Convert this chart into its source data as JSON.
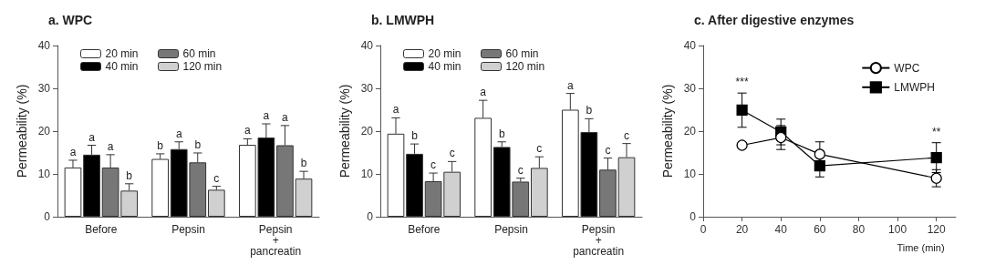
{
  "chart_data": [
    {
      "type": "bar",
      "title": "a. WPC",
      "ylabel": "Permeability (%)",
      "categories": [
        "Before",
        "Pepsin",
        "Pepsin + pancreatin"
      ],
      "ylim": [
        0,
        40
      ],
      "yticks": [
        0,
        10,
        20,
        30,
        40
      ],
      "legend": "top",
      "series": [
        {
          "name": "20 min",
          "color": "#ffffff",
          "values": [
            11.5,
            13.5,
            16.8
          ],
          "errors": [
            1.7,
            1.2,
            1.4
          ],
          "value_labels": [
            "a",
            "b",
            "a"
          ]
        },
        {
          "name": "40 min",
          "color": "#000000",
          "values": [
            14.5,
            15.8,
            18.5
          ],
          "errors": [
            2.2,
            1.7,
            3.2
          ],
          "value_labels": [
            "a",
            "a",
            "a"
          ]
        },
        {
          "name": "60 min",
          "color": "#777777",
          "values": [
            11.5,
            12.7,
            16.7
          ],
          "errors": [
            3.0,
            2.2,
            4.6
          ],
          "value_labels": [
            "a",
            "b",
            "a"
          ]
        },
        {
          "name": "120 min",
          "color": "#d0d0d0",
          "values": [
            6.1,
            6.3,
            8.9
          ],
          "errors": [
            1.6,
            0.8,
            1.7
          ],
          "value_labels": [
            "b",
            "c",
            "b"
          ]
        }
      ]
    },
    {
      "type": "bar",
      "title": "b. LMWPH",
      "ylabel": "Permeability (%)",
      "categories": [
        "Before",
        "Pepsin",
        "Pepsin + pancreatin"
      ],
      "ylim": [
        0,
        40
      ],
      "yticks": [
        0,
        10,
        20,
        30,
        40
      ],
      "legend": "top",
      "series": [
        {
          "name": "20 min",
          "color": "#ffffff",
          "values": [
            19.4,
            23.1,
            25.0
          ],
          "errors": [
            3.7,
            4.1,
            3.8
          ],
          "value_labels": [
            "a",
            "a",
            "a"
          ]
        },
        {
          "name": "40 min",
          "color": "#000000",
          "values": [
            14.7,
            16.3,
            19.8
          ],
          "errors": [
            2.3,
            1.2,
            3.1
          ],
          "value_labels": [
            "b",
            "b",
            "b"
          ]
        },
        {
          "name": "60 min",
          "color": "#777777",
          "values": [
            8.3,
            8.2,
            11.0
          ],
          "errors": [
            1.9,
            0.8,
            2.7
          ],
          "value_labels": [
            "c",
            "c",
            "c"
          ]
        },
        {
          "name": "120 min",
          "color": "#d0d0d0",
          "values": [
            10.5,
            11.4,
            13.9
          ],
          "errors": [
            2.4,
            2.6,
            3.2
          ],
          "value_labels": [
            "c",
            "c",
            "c"
          ]
        }
      ]
    },
    {
      "type": "line",
      "title": "c. After digestive enzymes",
      "ylabel": "Permeability (%)",
      "xlabel": "Time (min)",
      "x": [
        20,
        40,
        60,
        120
      ],
      "xlim": [
        0,
        130
      ],
      "xticks": [
        0,
        20,
        40,
        60,
        80,
        100,
        120
      ],
      "ylim": [
        0,
        40
      ],
      "yticks": [
        0,
        10,
        20,
        30,
        40
      ],
      "legend": "top right",
      "annotations": [
        "***",
        "**"
      ],
      "series": [
        {
          "name": "WPC",
          "color": "#000000",
          "marker": "circle",
          "values": [
            16.7,
            18.5,
            14.6,
            9.0
          ],
          "errors": [
            null,
            2.8,
            2.9,
            2.0
          ]
        },
        {
          "name": "LMWPH",
          "color": "#000000",
          "marker": "square",
          "values": [
            24.9,
            19.8,
            11.9,
            13.8
          ],
          "errors": [
            4.0,
            3.0,
            2.6,
            3.5
          ]
        }
      ]
    }
  ]
}
